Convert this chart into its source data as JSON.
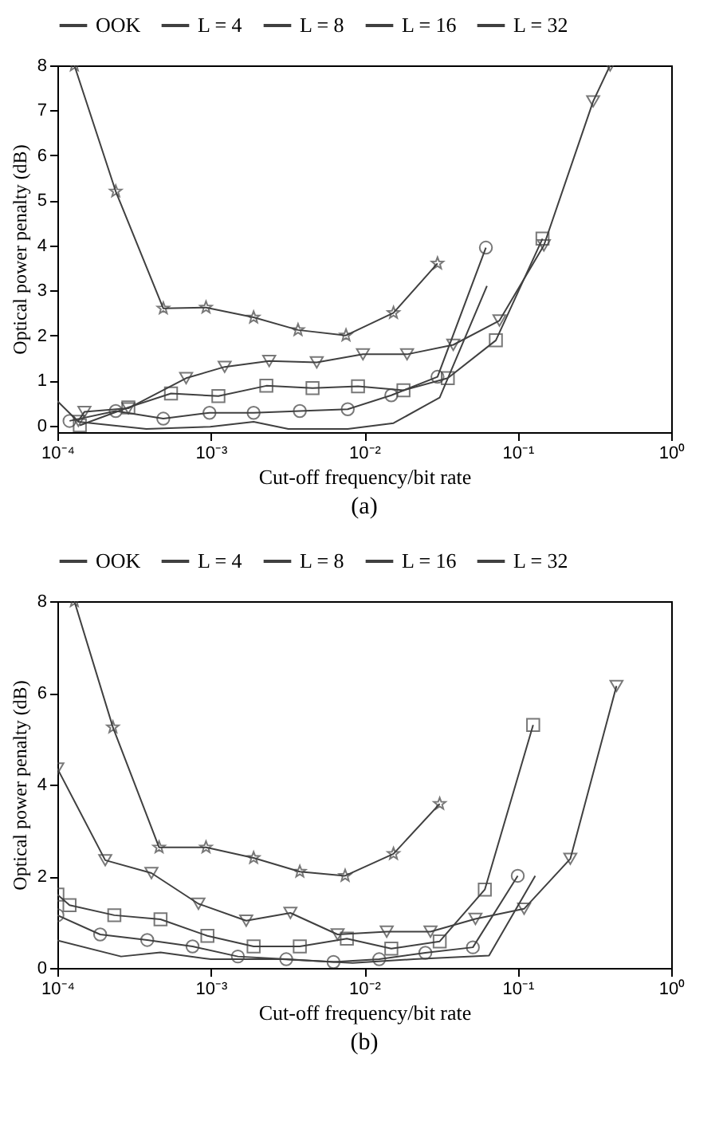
{
  "chart_data": [
    {
      "type": "line",
      "title": "(a)",
      "xlabel": "Cut-off frequency/bit rate",
      "ylabel": "Optical power penalty (dB)",
      "log": "x",
      "grid": false,
      "legend": "top",
      "xlim": [
        0.0001,
        1
      ],
      "xticks": [
        {
          "value": 0.0001,
          "label": "10⁻⁴"
        },
        {
          "value": 0.001,
          "label": "10⁻³"
        },
        {
          "value": 0.01,
          "label": "10⁻²"
        },
        {
          "value": 0.1,
          "label": "10⁻¹"
        },
        {
          "value": 1,
          "label": "10⁰"
        }
      ],
      "ylim": [
        -0.15,
        8
      ],
      "yticks": [
        0,
        1,
        2,
        3,
        4,
        5,
        6,
        7,
        8
      ],
      "series": [
        {
          "name": "OOK",
          "color": "#404040",
          "marker": "star",
          "x": [
            0.000129,
            0.00024,
            0.00049,
            0.00093,
            0.0019,
            0.0037,
            0.0076,
            0.0155,
            0.03
          ],
          "values": [
            8,
            5.2,
            2.6,
            2.62,
            2.4,
            2.12,
            2.0,
            2.5,
            3.6
          ]
        },
        {
          "name": "L = 4",
          "color": "#404040",
          "marker": "triangle",
          "x": [
            0.000137,
            0.00015,
            0.00029,
            0.00069,
            0.00123,
            0.0024,
            0.0049,
            0.0098,
            0.019,
            0.038,
            0.076,
            0.148,
            0.31,
            0.4
          ],
          "values": [
            0.1,
            0.3,
            0.38,
            1.05,
            1.3,
            1.43,
            1.4,
            1.58,
            1.58,
            1.79,
            2.33,
            4.0,
            7.2,
            8
          ]
        },
        {
          "name": "L = 8",
          "color": "#404040",
          "marker": "square",
          "x": [
            0.00014,
            0.00029,
            0.00055,
            0.00112,
            0.0023,
            0.0046,
            0.0091,
            0.018,
            0.035,
            0.072,
            0.145
          ],
          "values": [
            0.0,
            0.4,
            0.71,
            0.65,
            0.88,
            0.83,
            0.87,
            0.78,
            1.05,
            1.89,
            4.15
          ]
        },
        {
          "name": "L = 16",
          "color": "#404040",
          "marker": "circle",
          "x": [
            0.00012,
            0.00024,
            0.00049,
            0.00098,
            0.0019,
            0.0038,
            0.0078,
            0.015,
            0.03,
            0.062
          ],
          "values": [
            0.1,
            0.32,
            0.15,
            0.28,
            0.28,
            0.32,
            0.36,
            0.67,
            1.08,
            3.95
          ]
        },
        {
          "name": "L = 32",
          "color": "#404040",
          "marker": "none",
          "x": [
            0.0001,
            0.000137,
            0.00038,
            0.00099,
            0.0019,
            0.0032,
            0.0078,
            0.0155,
            0.031,
            0.063
          ],
          "values": [
            0.54,
            0.08,
            -0.08,
            -0.03,
            0.08,
            -0.08,
            -0.08,
            0.05,
            0.62,
            3.1
          ]
        }
      ]
    },
    {
      "type": "line",
      "title": "(b)",
      "xlabel": "Cut-off frequency/bit rate",
      "ylabel": "Optical power penalty (dB)",
      "log": "x",
      "grid": false,
      "legend": "top",
      "xlim": [
        0.0001,
        1
      ],
      "xticks": [
        {
          "value": 0.0001,
          "label": "10⁻⁴"
        },
        {
          "value": 0.001,
          "label": "10⁻³"
        },
        {
          "value": 0.01,
          "label": "10⁻²"
        },
        {
          "value": 0.1,
          "label": "10⁻¹"
        },
        {
          "value": 1,
          "label": "10⁰"
        }
      ],
      "ylim": [
        0,
        8
      ],
      "yticks": [
        0,
        2,
        4,
        6,
        8
      ],
      "series": [
        {
          "name": "OOK",
          "color": "#404040",
          "marker": "star",
          "x": [
            0.000129,
            0.00023,
            0.00046,
            0.00093,
            0.0019,
            0.0038,
            0.0075,
            0.0155,
            0.031
          ],
          "values": [
            8,
            5.25,
            2.63,
            2.63,
            2.4,
            2.1,
            2.01,
            2.49,
            3.58
          ]
        },
        {
          "name": "L = 4",
          "color": "#404040",
          "marker": "triangle",
          "x": [
            0.0001,
            0.000205,
            0.00041,
            0.00083,
            0.0017,
            0.0033,
            0.0067,
            0.014,
            0.027,
            0.053,
            0.11,
            0.22,
            0.44
          ],
          "values": [
            4.35,
            2.35,
            2.07,
            1.4,
            1.03,
            1.2,
            0.73,
            0.79,
            0.79,
            1.07,
            1.29,
            2.38,
            6.15
          ]
        },
        {
          "name": "L = 8",
          "color": "#404040",
          "marker": "square",
          "x": [
            0.0001,
            0.00012,
            0.000235,
            0.00047,
            0.00095,
            0.0019,
            0.0038,
            0.0077,
            0.015,
            0.031,
            0.061,
            0.126
          ],
          "values": [
            1.6,
            1.37,
            1.15,
            1.06,
            0.7,
            0.47,
            0.47,
            0.64,
            0.42,
            0.58,
            1.71,
            5.3
          ]
        },
        {
          "name": "L = 16",
          "color": "#404040",
          "marker": "circle",
          "x": [
            0.0001,
            0.00019,
            0.000385,
            0.00076,
            0.0015,
            0.0031,
            0.0063,
            0.0125,
            0.025,
            0.051,
            0.1
          ],
          "values": [
            1.15,
            0.73,
            0.61,
            0.47,
            0.25,
            0.19,
            0.13,
            0.19,
            0.33,
            0.45,
            2.01
          ]
        },
        {
          "name": "L = 32",
          "color": "#404040",
          "marker": "none",
          "x": [
            0.0001,
            0.00026,
            0.00047,
            0.001,
            0.0029,
            0.0084,
            0.021,
            0.065,
            0.13
          ],
          "values": [
            0.6,
            0.25,
            0.34,
            0.19,
            0.19,
            0.11,
            0.19,
            0.27,
            2.01
          ]
        }
      ]
    }
  ]
}
